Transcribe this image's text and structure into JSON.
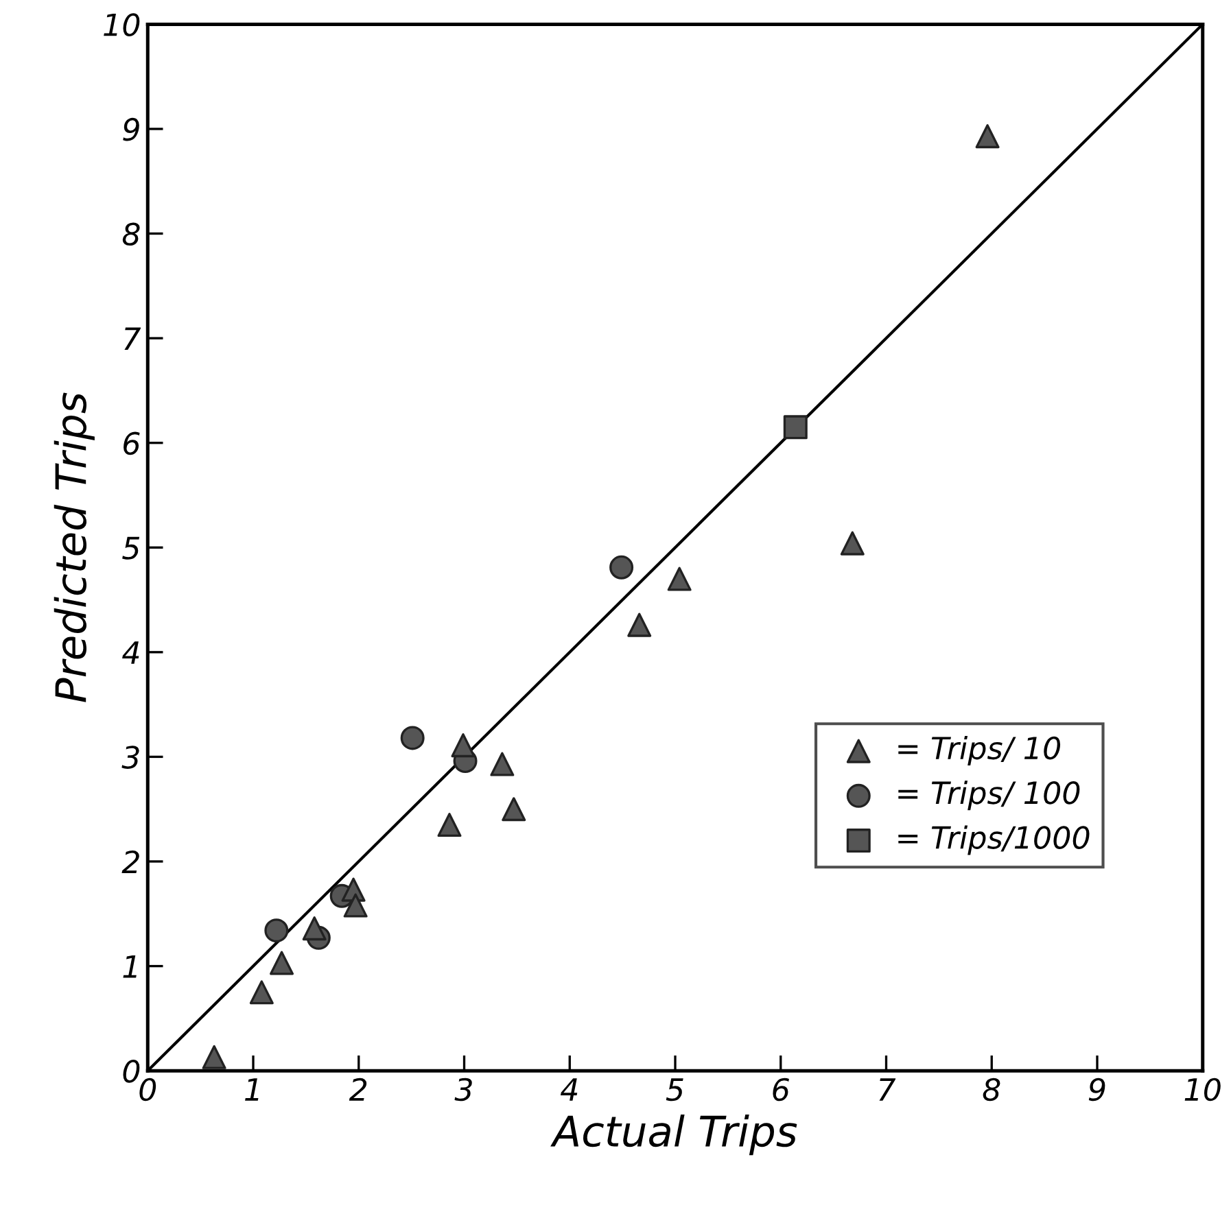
{
  "chart_data": {
    "type": "scatter",
    "xlabel": "Actual Trips",
    "ylabel": "Predicted Trips",
    "xlim": [
      0,
      10
    ],
    "ylim": [
      0,
      10
    ],
    "xticks": [
      0,
      1,
      2,
      3,
      4,
      5,
      6,
      7,
      8,
      9,
      10
    ],
    "yticks": [
      0,
      1,
      2,
      3,
      4,
      5,
      6,
      7,
      8,
      9,
      10
    ],
    "grid": false,
    "legend": "bottom right",
    "series": [
      {
        "name": "= Trips/ 10",
        "marker": "triangle",
        "color": "#555555",
        "x": [
          0.63,
          1.08,
          1.27,
          1.58,
          1.95,
          1.97,
          2.99,
          2.86,
          3.36,
          3.47,
          4.66,
          5.04,
          6.68,
          7.96
        ],
        "values": [
          0.13,
          0.75,
          1.03,
          1.36,
          1.73,
          1.58,
          3.11,
          2.35,
          2.93,
          2.5,
          4.26,
          4.7,
          5.04,
          8.93
        ]
      },
      {
        "name": "= Trips/ 100",
        "marker": "circle",
        "color": "#555555",
        "x": [
          1.22,
          1.62,
          1.84,
          2.51,
          3.01,
          4.49
        ],
        "values": [
          1.34,
          1.27,
          1.67,
          3.18,
          2.96,
          4.81
        ]
      },
      {
        "name": "= Trips/1000",
        "marker": "square",
        "color": "#555555",
        "x": [
          6.14
        ],
        "values": [
          6.15
        ]
      },
      {
        "type": "line",
        "marker": "none",
        "line_style": "solid",
        "color": "#000000",
        "x": [
          0,
          10
        ],
        "values": [
          0,
          10
        ]
      }
    ]
  }
}
